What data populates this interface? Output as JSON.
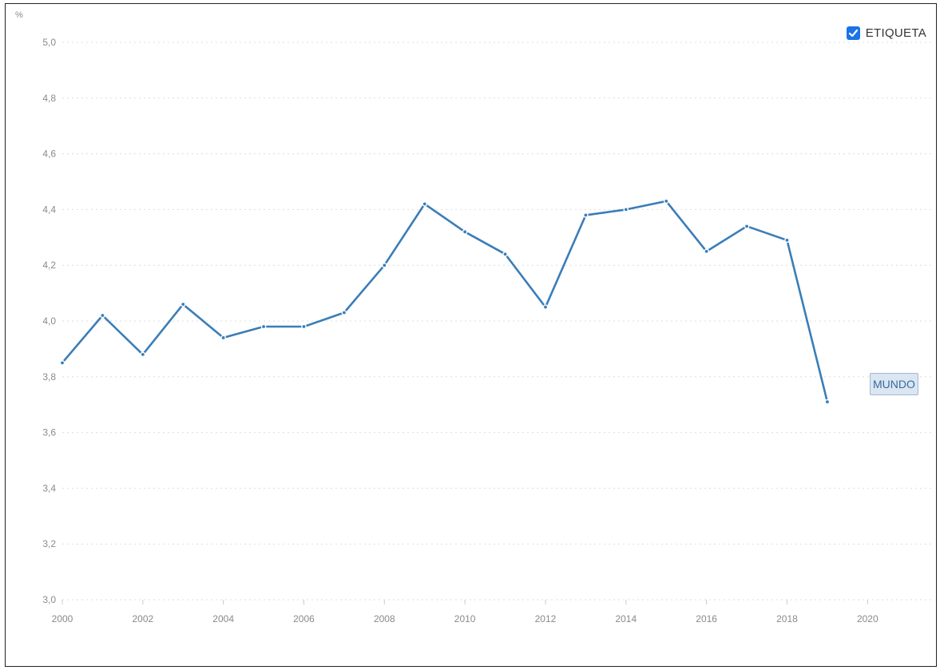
{
  "legend": {
    "label": "ETIQUETA",
    "checked": true,
    "check_icon": "check-icon"
  },
  "series_label": "MUNDO",
  "chart_data": {
    "type": "line",
    "title": "",
    "xlabel": "",
    "ylabel": "%",
    "unit_label": "%",
    "xlim": [
      2000,
      2021.7
    ],
    "ylim": [
      3.0,
      5.0
    ],
    "grid": true,
    "x_ticks": [
      2000,
      2002,
      2004,
      2006,
      2008,
      2010,
      2012,
      2014,
      2016,
      2018,
      2020
    ],
    "x_tick_labels": [
      "2000",
      "2002",
      "2004",
      "2006",
      "2008",
      "2010",
      "2012",
      "2014",
      "2016",
      "2018",
      "2020"
    ],
    "y_ticks": [
      3.0,
      3.2,
      3.4,
      3.6,
      3.8,
      4.0,
      4.2,
      4.4,
      4.6,
      4.8,
      5.0
    ],
    "y_tick_labels": [
      "3,0",
      "3,2",
      "3,4",
      "3,6",
      "3,8",
      "4,0",
      "4,2",
      "4,4",
      "4,6",
      "4,8",
      "5,0"
    ],
    "series": [
      {
        "name": "MUNDO",
        "color": "#3a7db8",
        "x": [
          2000,
          2001,
          2002,
          2003,
          2004,
          2005,
          2006,
          2007,
          2008,
          2009,
          2010,
          2011,
          2012,
          2013,
          2014,
          2015,
          2016,
          2017,
          2018,
          2019
        ],
        "y": [
          3.85,
          4.02,
          3.88,
          4.06,
          3.94,
          3.98,
          3.98,
          4.03,
          4.2,
          4.42,
          4.32,
          4.24,
          4.05,
          4.38,
          4.4,
          4.43,
          4.25,
          4.34,
          4.29,
          3.71
        ]
      }
    ]
  }
}
